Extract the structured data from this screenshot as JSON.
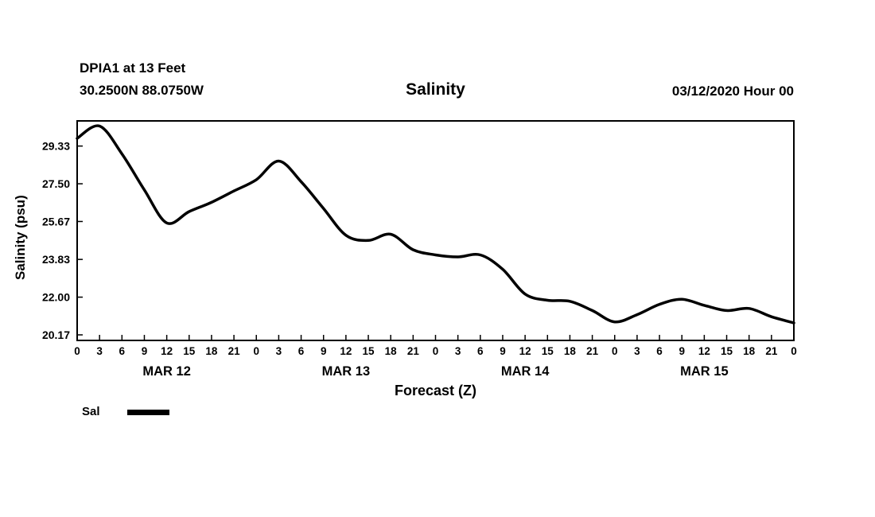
{
  "header": {
    "station_line1": "DPIA1 at 13 Feet",
    "station_line2": "30.2500N 88.0750W",
    "title": "Salinity",
    "datetime": "03/12/2020 Hour 00"
  },
  "legend": {
    "label": "Sal",
    "line_color": "#000000",
    "position": "bottom-left"
  },
  "chart_data": {
    "type": "line",
    "title": "Salinity",
    "xlabel": "Forecast (Z)",
    "ylabel": "Salinity (psu)",
    "xlim": [
      0,
      96
    ],
    "ylim": [
      19.9,
      30.55
    ],
    "grid": false,
    "x": [
      0,
      3,
      6,
      9,
      12,
      15,
      18,
      21,
      24,
      27,
      30,
      33,
      36,
      39,
      42,
      45,
      48,
      51,
      54,
      57,
      60,
      63,
      66,
      69,
      72,
      75,
      78,
      81,
      84,
      87,
      90,
      93,
      96
    ],
    "hour_tick_labels": [
      "0",
      "3",
      "6",
      "9",
      "12",
      "15",
      "18",
      "21",
      "0",
      "3",
      "6",
      "9",
      "12",
      "15",
      "18",
      "21",
      "0",
      "3",
      "6",
      "9",
      "12",
      "15",
      "18",
      "21",
      "0",
      "3",
      "6",
      "9",
      "12",
      "15",
      "18",
      "21",
      "0"
    ],
    "day_labels": [
      {
        "label": "MAR 12",
        "hour": 12
      },
      {
        "label": "MAR 13",
        "hour": 36
      },
      {
        "label": "MAR 14",
        "hour": 60
      },
      {
        "label": "MAR 15",
        "hour": 84
      }
    ],
    "y_ticks": [
      20.17,
      22.0,
      23.83,
      25.67,
      27.5,
      29.33
    ],
    "y_tick_labels": [
      "20.17",
      "22.00",
      "23.83",
      "25.67",
      "27.50",
      "29.33"
    ],
    "series": [
      {
        "name": "Sal",
        "color": "#000000",
        "values": [
          29.7,
          30.3,
          28.95,
          27.2,
          25.6,
          26.15,
          26.6,
          27.15,
          27.7,
          28.6,
          27.6,
          26.3,
          25.0,
          24.75,
          25.05,
          24.3,
          24.05,
          23.95,
          24.05,
          23.35,
          22.15,
          21.85,
          21.8,
          21.35,
          20.8,
          21.15,
          21.65,
          21.9,
          21.6,
          21.35,
          21.45,
          21.05,
          20.75
        ]
      }
    ]
  }
}
